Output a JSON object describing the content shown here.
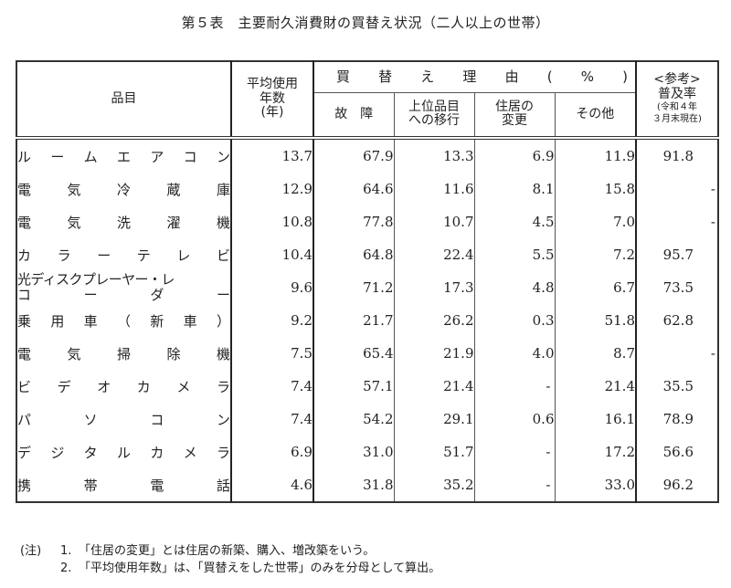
{
  "title": "第５表　主要耐久消費財の買替え状況（二人以上の世帯）",
  "header": {
    "item": "品目",
    "avg_years": [
      "平均使用",
      "年数",
      "(年)"
    ],
    "reason_group": [
      "買",
      "替",
      "え",
      "理",
      "由",
      "(",
      "%",
      ")"
    ],
    "reasons": {
      "breakdown": "故　障",
      "upgrade": [
        "上位品目",
        "への移行"
      ],
      "residence": [
        "住居の",
        "変更"
      ],
      "other": "その他"
    },
    "reference": {
      "label": "<参考>",
      "rate": "普及率",
      "note1": "(令和４年",
      "note2": "３月末現在)"
    }
  },
  "rows": [
    {
      "item": [
        "ル",
        "ー",
        "ム",
        "エ",
        "ア",
        "コ",
        "ン"
      ],
      "avg_years": "13.7",
      "breakdown": "67.9",
      "upgrade": "13.3",
      "residence": "6.9",
      "other": "11.9",
      "rate": "91.8"
    },
    {
      "item": [
        "電",
        "気",
        "冷",
        "蔵",
        "庫"
      ],
      "avg_years": "12.9",
      "breakdown": "64.6",
      "upgrade": "11.6",
      "residence": "8.1",
      "other": "15.8",
      "rate": "-"
    },
    {
      "item": [
        "電",
        "気",
        "洗",
        "濯",
        "機"
      ],
      "avg_years": "10.8",
      "breakdown": "77.8",
      "upgrade": "10.7",
      "residence": "4.5",
      "other": "7.0",
      "rate": "-"
    },
    {
      "item": [
        "カ",
        "ラ",
        "ー",
        "テ",
        "レ",
        "ビ"
      ],
      "avg_years": "10.4",
      "breakdown": "64.8",
      "upgrade": "22.4",
      "residence": "5.5",
      "other": "7.2",
      "rate": "95.7"
    },
    {
      "item_line1": "光ディスクプレーヤー・レ",
      "item_line2": [
        "コ",
        "ー",
        "ダ",
        "ー"
      ],
      "avg_years": "9.6",
      "breakdown": "71.2",
      "upgrade": "17.3",
      "residence": "4.8",
      "other": "6.7",
      "rate": "73.5"
    },
    {
      "item": [
        "乗",
        "用",
        "車",
        "（",
        "新",
        "車",
        "）"
      ],
      "avg_years": "9.2",
      "breakdown": "21.7",
      "upgrade": "26.2",
      "residence": "0.3",
      "other": "51.8",
      "rate": "62.8"
    },
    {
      "item": [
        "電",
        "気",
        "掃",
        "除",
        "機"
      ],
      "avg_years": "7.5",
      "breakdown": "65.4",
      "upgrade": "21.9",
      "residence": "4.0",
      "other": "8.7",
      "rate": "-"
    },
    {
      "item": [
        "ビ",
        "デ",
        "オ",
        "カ",
        "メ",
        "ラ"
      ],
      "avg_years": "7.4",
      "breakdown": "57.1",
      "upgrade": "21.4",
      "residence": "-",
      "other": "21.4",
      "rate": "35.5"
    },
    {
      "item": [
        "パ",
        "ソ",
        "コ",
        "ン"
      ],
      "avg_years": "7.4",
      "breakdown": "54.2",
      "upgrade": "29.1",
      "residence": "0.6",
      "other": "16.1",
      "rate": "78.9"
    },
    {
      "item": [
        "デ",
        "ジ",
        "タ",
        "ル",
        "カ",
        "メ",
        "ラ"
      ],
      "avg_years": "6.9",
      "breakdown": "31.0",
      "upgrade": "51.7",
      "residence": "-",
      "other": "17.2",
      "rate": "56.6"
    },
    {
      "item": [
        "携",
        "帯",
        "電",
        "話"
      ],
      "avg_years": "4.6",
      "breakdown": "31.8",
      "upgrade": "35.2",
      "residence": "-",
      "other": "33.0",
      "rate": "96.2"
    }
  ],
  "notes": {
    "prefix": "(注)",
    "items": [
      {
        "num": "1.",
        "text": "「住居の変更」とは住居の新築、購入、増改築をいう。"
      },
      {
        "num": "2.",
        "text": "「平均使用年数」は、「買替えをした世帯」のみを分母として算出。"
      }
    ]
  }
}
